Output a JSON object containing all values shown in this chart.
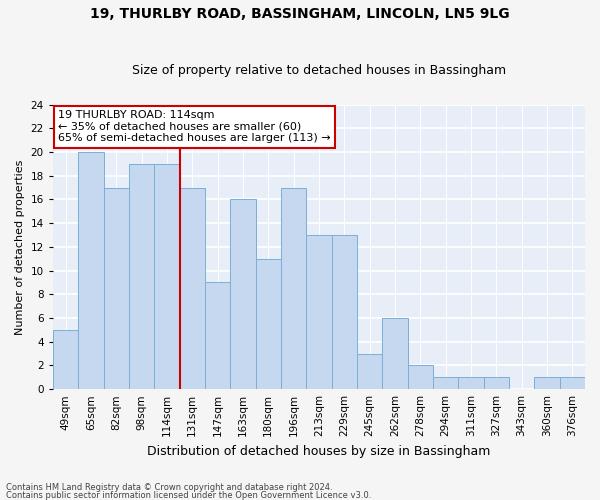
{
  "title1": "19, THURLBY ROAD, BASSINGHAM, LINCOLN, LN5 9LG",
  "title2": "Size of property relative to detached houses in Bassingham",
  "xlabel": "Distribution of detached houses by size in Bassingham",
  "ylabel": "Number of detached properties",
  "categories": [
    "49sqm",
    "65sqm",
    "82sqm",
    "98sqm",
    "114sqm",
    "131sqm",
    "147sqm",
    "163sqm",
    "180sqm",
    "196sqm",
    "213sqm",
    "229sqm",
    "245sqm",
    "262sqm",
    "278sqm",
    "294sqm",
    "311sqm",
    "327sqm",
    "343sqm",
    "360sqm",
    "376sqm"
  ],
  "values": [
    5,
    20,
    17,
    19,
    19,
    17,
    9,
    16,
    11,
    17,
    13,
    13,
    3,
    6,
    2,
    1,
    1,
    1,
    0,
    1,
    1
  ],
  "bar_color": "#c5d8f0",
  "bar_edgecolor": "#7aafd4",
  "marker_index": 4,
  "marker_color": "#cc0000",
  "ylim": [
    0,
    24
  ],
  "yticks": [
    0,
    2,
    4,
    6,
    8,
    10,
    12,
    14,
    16,
    18,
    20,
    22,
    24
  ],
  "annotation_title": "19 THURLBY ROAD: 114sqm",
  "annotation_line1": "← 35% of detached houses are smaller (60)",
  "annotation_line2": "65% of semi-detached houses are larger (113) →",
  "annotation_box_facecolor": "#ffffff",
  "annotation_box_edgecolor": "#cc0000",
  "footer1": "Contains HM Land Registry data © Crown copyright and database right 2024.",
  "footer2": "Contains public sector information licensed under the Open Government Licence v3.0.",
  "plot_bg_color": "#e8eef8",
  "fig_bg_color": "#f5f5f5",
  "grid_color": "#ffffff",
  "title1_fontsize": 10,
  "title2_fontsize": 9,
  "xlabel_fontsize": 9,
  "ylabel_fontsize": 8,
  "tick_fontsize": 7.5,
  "annotation_fontsize": 8
}
